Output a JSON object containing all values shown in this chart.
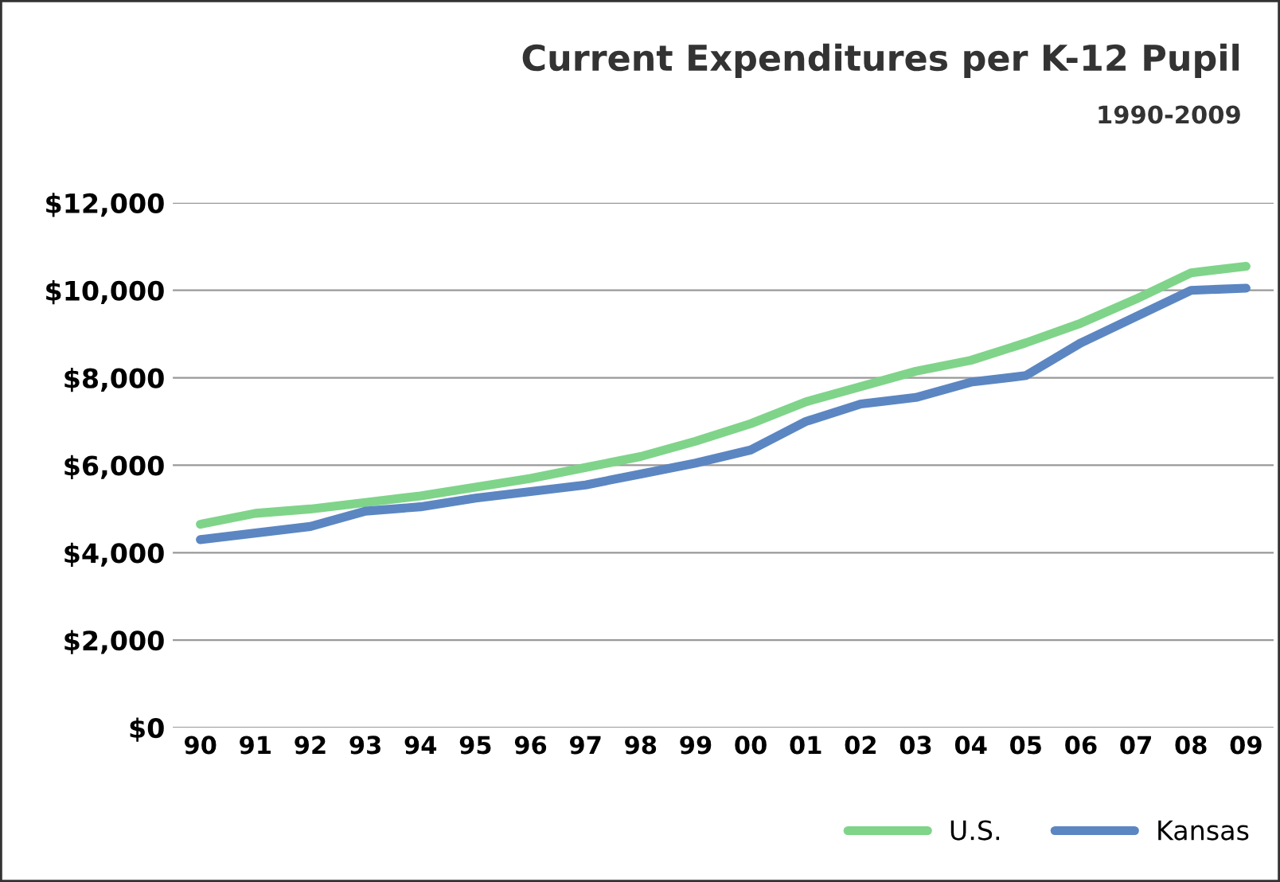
{
  "chart_data": {
    "type": "line",
    "title": "Current Expenditures per K-12 Pupil",
    "subtitle": "1990-2009",
    "categories": [
      "90",
      "91",
      "92",
      "93",
      "94",
      "95",
      "96",
      "97",
      "98",
      "99",
      "00",
      "01",
      "02",
      "03",
      "04",
      "05",
      "06",
      "07",
      "08",
      "09"
    ],
    "series": [
      {
        "name": "U.S.",
        "color": "#7fd48a",
        "values": [
          4650,
          4900,
          5000,
          5150,
          5300,
          5500,
          5700,
          5950,
          6200,
          6550,
          6950,
          7450,
          7800,
          8150,
          8400,
          8800,
          9250,
          9800,
          10400,
          10550
        ]
      },
      {
        "name": "Kansas",
        "color": "#5b86c2",
        "values": [
          4300,
          4450,
          4600,
          4950,
          5050,
          5250,
          5400,
          5550,
          5800,
          6050,
          6350,
          7000,
          7400,
          7550,
          7900,
          8050,
          8800,
          9400,
          10000,
          10050
        ]
      }
    ],
    "ylim": [
      0,
      12000
    ],
    "yticks": [
      {
        "value": 0,
        "label": "$0"
      },
      {
        "value": 2000,
        "label": "$2,000"
      },
      {
        "value": 4000,
        "label": "$4,000"
      },
      {
        "value": 6000,
        "label": "$6,000"
      },
      {
        "value": 8000,
        "label": "$8,000"
      },
      {
        "value": 10000,
        "label": "$10,000"
      },
      {
        "value": 12000,
        "label": "$12,000"
      }
    ],
    "grid": "y",
    "legend": "bottom right",
    "marker": "none",
    "line_style": "solid"
  }
}
